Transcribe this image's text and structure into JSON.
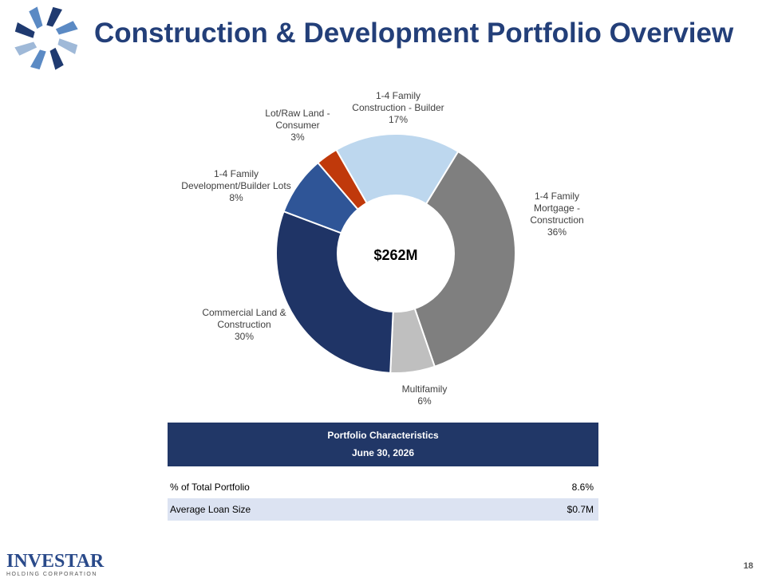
{
  "header": {
    "title": "Construction & Development Portfolio Overview"
  },
  "chart_data": {
    "type": "pie",
    "center_label": "$262M",
    "categories": [
      "1-4 Family Mortgage - Construction",
      "Multifamily",
      "Commercial Land & Construction",
      "1-4 Family Development/Builder Lots",
      "Lot/Raw Land - Consumer",
      "1-4 Family Construction - Builder"
    ],
    "values": [
      36,
      6,
      30,
      8,
      3,
      17
    ],
    "labels": [
      {
        "lines": [
          "1-4 Family",
          "Mortgage -",
          "Construction"
        ],
        "pct": "36%"
      },
      {
        "lines": [
          "Multifamily"
        ],
        "pct": "6%"
      },
      {
        "lines": [
          "Commercial Land &",
          "Construction"
        ],
        "pct": "30%"
      },
      {
        "lines": [
          "1-4 Family",
          "Development/Builder Lots"
        ],
        "pct": "8%"
      },
      {
        "lines": [
          "Lot/Raw Land -",
          "Consumer"
        ],
        "pct": "3%"
      },
      {
        "lines": [
          "1-4 Family",
          "Construction - Builder"
        ],
        "pct": "17%"
      }
    ],
    "colors": [
      "#7f7f7f",
      "#bfbfbf",
      "#1f3466",
      "#2f5597",
      "#c0390b",
      "#bdd7ee"
    ]
  },
  "table": {
    "title": "Portfolio Characteristics",
    "date": "June 30, 2026",
    "rows": [
      {
        "label": "% of Total Portfolio",
        "value": "8.6%"
      },
      {
        "label": "Average Loan Size",
        "value": "$0.7M"
      }
    ]
  },
  "footer": {
    "logo_name": "INVESTAR",
    "logo_sub": "HOLDING CORPORATION",
    "page": "18"
  }
}
